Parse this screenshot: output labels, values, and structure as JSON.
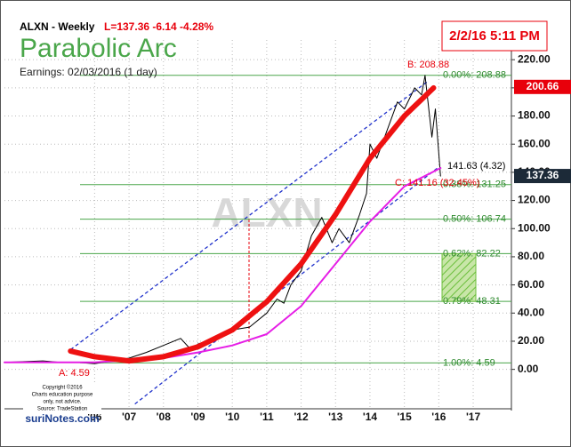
{
  "chart_data": {
    "type": "line",
    "symbol_line": "ALXN - Weekly",
    "quote": "L=137.36  -6.14  -4.28%",
    "title": "Parabolic Arc",
    "subtitle": "Earnings: 02/03/2016 (1 day)",
    "timestamp": "2/2/16 5:11 PM",
    "watermark": "ALXN",
    "annotations": [
      "B: 208.88",
      "A: 4.59",
      "C: 141.16 (32.45%)",
      "141.63 (4.32)"
    ],
    "copyright": [
      "Copyright ©2016",
      "Charts education purpose",
      "only, not advice.",
      "Source: TradeStation"
    ],
    "brand": "suriNotes.com",
    "xlim": [
      2003.38,
      2018.11
    ],
    "ylim": [
      -28,
      234
    ],
    "grid": true,
    "xticks": [
      {
        "value": 2006,
        "label": "'06"
      },
      {
        "value": 2007,
        "label": "'07"
      },
      {
        "value": 2008,
        "label": "'08"
      },
      {
        "value": 2009,
        "label": "'09"
      },
      {
        "value": 2010,
        "label": "'10"
      },
      {
        "value": 2011,
        "label": "'11"
      },
      {
        "value": 2012,
        "label": "'12"
      },
      {
        "value": 2013,
        "label": "'13"
      },
      {
        "value": 2014,
        "label": "'14"
      },
      {
        "value": 2015,
        "label": "'15"
      },
      {
        "value": 2016,
        "label": "'16"
      },
      {
        "value": 2017,
        "label": "'17"
      }
    ],
    "yticks": [
      {
        "value": 0,
        "label": "0.00"
      },
      {
        "value": 20,
        "label": "20.00"
      },
      {
        "value": 40,
        "label": "40.00"
      },
      {
        "value": 60,
        "label": "60.00"
      },
      {
        "value": 80,
        "label": "80.00"
      },
      {
        "value": 100,
        "label": "100.00"
      },
      {
        "value": 120,
        "label": "120.00"
      },
      {
        "value": 140,
        "label": "140.00"
      },
      {
        "value": 160,
        "label": "160.00"
      },
      {
        "value": 180,
        "label": "180.00"
      },
      {
        "value": 200,
        "label": "200.00"
      },
      {
        "value": 220,
        "label": "220.00"
      }
    ],
    "series": [
      {
        "color": "#000000",
        "width": 1,
        "x": [
          2003.38,
          2004.5,
          2005.0,
          2005.5,
          2006.0,
          2006.5,
          2007.0,
          2007.5,
          2008.0,
          2008.5,
          2008.8,
          2009.0,
          2009.5,
          2010.0,
          2010.5,
          2011.0,
          2011.3,
          2011.5,
          2011.7,
          2012.0,
          2012.3,
          2012.6,
          2012.9,
          2013.1,
          2013.4,
          2013.7,
          2013.9,
          2014.0,
          2014.2,
          2014.5,
          2014.8,
          2015.0,
          2015.3,
          2015.5,
          2015.6,
          2015.8,
          2015.9,
          2016.05
        ],
        "values": [
          5,
          6,
          5,
          5,
          4,
          6,
          8,
          12,
          17,
          22,
          14,
          18,
          22,
          28,
          30,
          40,
          50,
          47,
          60,
          70,
          95,
          108,
          90,
          100,
          90,
          110,
          125,
          160,
          150,
          170,
          190,
          185,
          200,
          195,
          208.88,
          165,
          185,
          137.36
        ]
      },
      {
        "color": "#e61ee6",
        "width": 2,
        "x": [
          2003.38,
          2006.0,
          2008.0,
          2009.0,
          2010.0,
          2011.0,
          2012.0,
          2013.0,
          2014.0,
          2015.0,
          2016.05
        ],
        "values": [
          5,
          5,
          8,
          12,
          17,
          25,
          45,
          75,
          105,
          130,
          143
        ]
      },
      {
        "color": "#ee1111",
        "width": 6,
        "x": [
          2005.3,
          2006.0,
          2007.0,
          2008.0,
          2009.0,
          2010.0,
          2011.0,
          2012.0,
          2013.0,
          2014.0,
          2015.0,
          2015.85
        ],
        "values": [
          13,
          9,
          6,
          9,
          16,
          28,
          48,
          75,
          110,
          150,
          180,
          200
        ]
      }
    ],
    "channels": [
      {
        "x": [
          2005.3,
          2015.7
        ],
        "values": [
          14,
          205
        ]
      },
      {
        "x": [
          2007.17,
          2015.96
        ],
        "values": [
          -24.6,
          143
        ]
      }
    ],
    "levels": [
      {
        "label": "0.00%: 208.88",
        "value": 208.88
      },
      {
        "label": "0.38%: 131.25",
        "value": 131.25
      },
      {
        "label": "0.50%: 106.74",
        "value": 106.74
      },
      {
        "label": "0.62%: 82.22",
        "value": 82.22
      },
      {
        "label": "0.79%: 48.31",
        "value": 48.31
      },
      {
        "label": "1.00%: 4.59",
        "value": 4.59
      }
    ],
    "price_tags": [
      {
        "value": 200.66,
        "color": "#e8000b"
      },
      {
        "value": 137.36,
        "color": "#1c2a38"
      }
    ]
  }
}
